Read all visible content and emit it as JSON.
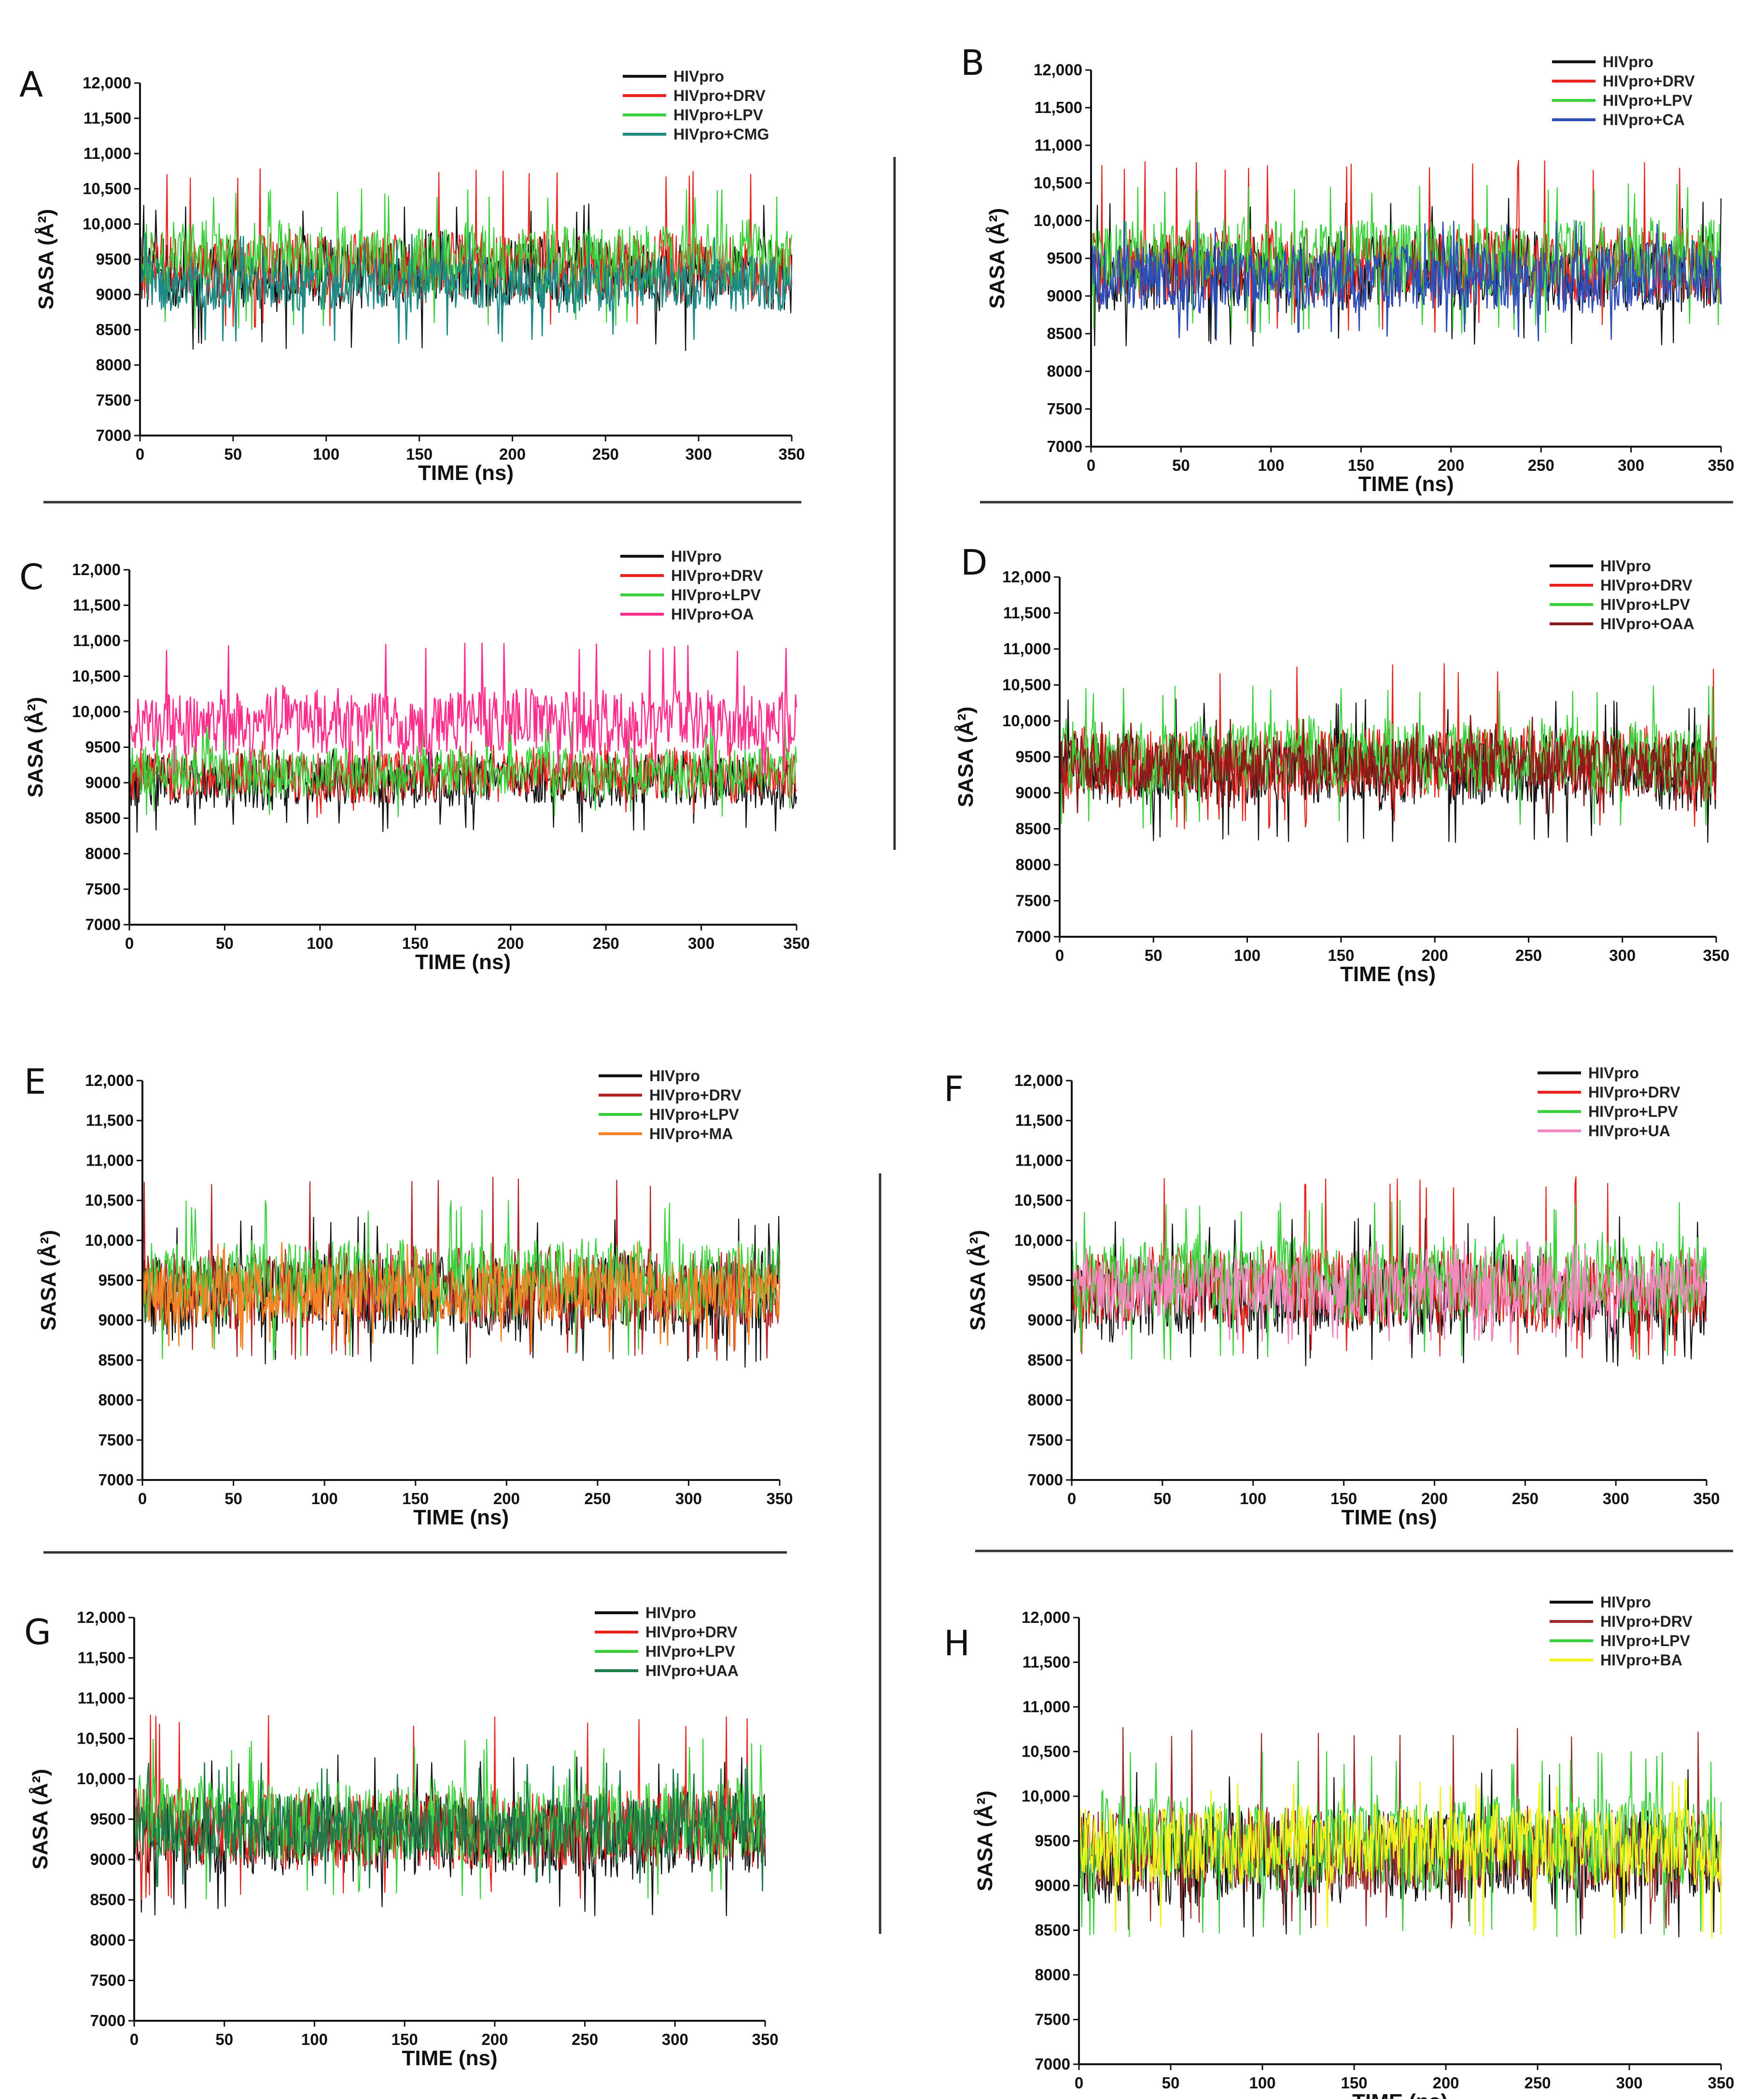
{
  "figure": {
    "panel_labels": [
      "A",
      "B",
      "C",
      "D",
      "E",
      "F",
      "G",
      "H"
    ]
  },
  "chart_data": [
    {
      "panel": "A",
      "type": "line",
      "xlabel": "TIME (ns)",
      "ylabel": "SASA (Å²)",
      "xlim": [
        0,
        350
      ],
      "ylim": [
        7000,
        12000
      ],
      "xticks": [
        "0",
        "50",
        "100",
        "150",
        "200",
        "250",
        "300",
        "350"
      ],
      "yticks": [
        "7000",
        "7500",
        "8000",
        "8500",
        "9000",
        "9500",
        "10,000",
        "10,500",
        "11,000",
        "11,500",
        "12,000"
      ],
      "series": [
        {
          "name": "HIVpro",
          "color": "#111111",
          "mean": 9300,
          "spread": 500,
          "min": 8200,
          "max": 10300
        },
        {
          "name": "HIVpro+DRV",
          "color": "#e8231b",
          "mean": 9400,
          "spread": 480,
          "min": 8500,
          "max": 10800
        },
        {
          "name": "HIVpro+LPV",
          "color": "#3cd13c",
          "mean": 9500,
          "spread": 500,
          "min": 8500,
          "max": 10500
        },
        {
          "name": "HIVpro+CMG",
          "color": "#1e8a85",
          "mean": 9150,
          "spread": 380,
          "min": 8300,
          "max": 9900
        }
      ]
    },
    {
      "panel": "B",
      "type": "line",
      "xlabel": "TIME (ns)",
      "ylabel": "SASA (Å²)",
      "xlim": [
        0,
        350
      ],
      "ylim": [
        7000,
        12000
      ],
      "xticks": [
        "0",
        "50",
        "100",
        "150",
        "200",
        "250",
        "300",
        "350"
      ],
      "yticks": [
        "7000",
        "7500",
        "8000",
        "8500",
        "9000",
        "9500",
        "10,000",
        "10,500",
        "11,000",
        "11,500",
        "12,000"
      ],
      "series": [
        {
          "name": "HIVpro",
          "color": "#111111",
          "mean": 9300,
          "spread": 500,
          "min": 8300,
          "max": 10300
        },
        {
          "name": "HIVpro+DRV",
          "color": "#e8231b",
          "mean": 9400,
          "spread": 480,
          "min": 8500,
          "max": 10800
        },
        {
          "name": "HIVpro+LPV",
          "color": "#3cd13c",
          "mean": 9500,
          "spread": 500,
          "min": 8500,
          "max": 10500
        },
        {
          "name": "HIVpro+CA",
          "color": "#2f4fb8",
          "mean": 9250,
          "spread": 430,
          "min": 8400,
          "max": 10000
        }
      ]
    },
    {
      "panel": "C",
      "type": "line",
      "xlabel": "TIME (ns)",
      "ylabel": "SASA (Å²)",
      "xlim": [
        0,
        350
      ],
      "ylim": [
        7000,
        12000
      ],
      "xticks": [
        "0",
        "50",
        "100",
        "150",
        "200",
        "250",
        "300",
        "350"
      ],
      "yticks": [
        "7000",
        "7500",
        "8000",
        "8500",
        "9000",
        "9500",
        "10,000",
        "10,500",
        "11,000",
        "11,500",
        "12,000"
      ],
      "series": [
        {
          "name": "HIVpro",
          "color": "#111111",
          "mean": 9000,
          "spread": 350,
          "min": 8300,
          "max": 9500
        },
        {
          "name": "HIVpro+DRV",
          "color": "#e8231b",
          "mean": 9100,
          "spread": 350,
          "min": 8500,
          "max": 9600
        },
        {
          "name": "HIVpro+LPV",
          "color": "#3cd13c",
          "mean": 9150,
          "spread": 350,
          "min": 8500,
          "max": 9900
        },
        {
          "name": "HIVpro+OA",
          "color": "#ff2e8c",
          "mean": 9850,
          "spread": 450,
          "min": 9100,
          "max": 11000
        }
      ]
    },
    {
      "panel": "D",
      "type": "line",
      "xlabel": "TIME (ns)",
      "ylabel": "SASA (Å²)",
      "xlim": [
        0,
        350
      ],
      "ylim": [
        7000,
        12000
      ],
      "xticks": [
        "0",
        "50",
        "100",
        "150",
        "200",
        "250",
        "300",
        "350"
      ],
      "yticks": [
        "7000",
        "7500",
        "8000",
        "8500",
        "9000",
        "9500",
        "10,000",
        "10,500",
        "11,000",
        "11,500",
        "12,000"
      ],
      "series": [
        {
          "name": "HIVpro",
          "color": "#111111",
          "mean": 9300,
          "spread": 500,
          "min": 8300,
          "max": 10300
        },
        {
          "name": "HIVpro+DRV",
          "color": "#e8231b",
          "mean": 9400,
          "spread": 480,
          "min": 8500,
          "max": 10800
        },
        {
          "name": "HIVpro+LPV",
          "color": "#3cd13c",
          "mean": 9500,
          "spread": 500,
          "min": 8500,
          "max": 10500
        },
        {
          "name": "HIVpro+OAA",
          "color": "#8b1a1a",
          "mean": 9400,
          "spread": 380,
          "min": 8700,
          "max": 10100
        }
      ]
    },
    {
      "panel": "E",
      "type": "line",
      "xlabel": "TIME (ns)",
      "ylabel": "SASA (Å²)",
      "xlim": [
        0,
        350
      ],
      "ylim": [
        7000,
        12000
      ],
      "xticks": [
        "0",
        "50",
        "100",
        "150",
        "200",
        "250",
        "300",
        "350"
      ],
      "yticks": [
        "7000",
        "7500",
        "8000",
        "8500",
        "9000",
        "9500",
        "10,000",
        "10,500",
        "11,000",
        "11,500",
        "12,000"
      ],
      "series": [
        {
          "name": "HIVpro",
          "color": "#111111",
          "mean": 9300,
          "spread": 500,
          "min": 8400,
          "max": 10300
        },
        {
          "name": "HIVpro+DRV",
          "color": "#b22222",
          "mean": 9400,
          "spread": 480,
          "min": 8500,
          "max": 10800
        },
        {
          "name": "HIVpro+LPV",
          "color": "#3cd13c",
          "mean": 9500,
          "spread": 500,
          "min": 8500,
          "max": 10500
        },
        {
          "name": "HIVpro+MA",
          "color": "#f58426",
          "mean": 9350,
          "spread": 380,
          "min": 8600,
          "max": 10000
        }
      ]
    },
    {
      "panel": "F",
      "type": "line",
      "xlabel": "TIME (ns)",
      "ylabel": "SASA (Å²)",
      "xlim": [
        0,
        350
      ],
      "ylim": [
        7000,
        12000
      ],
      "xticks": [
        "0",
        "50",
        "100",
        "150",
        "200",
        "250",
        "300",
        "350"
      ],
      "yticks": [
        "7000",
        "7500",
        "8000",
        "8500",
        "9000",
        "9500",
        "10,000",
        "10,500",
        "11,000",
        "11,500",
        "12,000"
      ],
      "series": [
        {
          "name": "HIVpro",
          "color": "#111111",
          "mean": 9300,
          "spread": 500,
          "min": 8400,
          "max": 10300
        },
        {
          "name": "HIVpro+DRV",
          "color": "#e8231b",
          "mean": 9400,
          "spread": 480,
          "min": 8500,
          "max": 10800
        },
        {
          "name": "HIVpro+LPV",
          "color": "#3cd13c",
          "mean": 9500,
          "spread": 500,
          "min": 8500,
          "max": 10500
        },
        {
          "name": "HIVpro+UA",
          "color": "#f28ac0",
          "mean": 9400,
          "spread": 380,
          "min": 8700,
          "max": 10000
        }
      ]
    },
    {
      "panel": "G",
      "type": "line",
      "xlabel": "TIME (ns)",
      "ylabel": "SASA (Å²)",
      "xlim": [
        0,
        350
      ],
      "ylim": [
        7000,
        12000
      ],
      "xticks": [
        "0",
        "50",
        "100",
        "150",
        "200",
        "250",
        "300",
        "350"
      ],
      "yticks": [
        "7000",
        "7500",
        "8000",
        "8500",
        "9000",
        "9500",
        "10,000",
        "10,500",
        "11,000",
        "11,500",
        "12,000"
      ],
      "series": [
        {
          "name": "HIVpro",
          "color": "#111111",
          "mean": 9300,
          "spread": 500,
          "min": 8300,
          "max": 10300
        },
        {
          "name": "HIVpro+DRV",
          "color": "#e8231b",
          "mean": 9400,
          "spread": 480,
          "min": 8500,
          "max": 10800
        },
        {
          "name": "HIVpro+LPV",
          "color": "#3cd13c",
          "mean": 9500,
          "spread": 500,
          "min": 8500,
          "max": 10500
        },
        {
          "name": "HIVpro+UAA",
          "color": "#1f7a4a",
          "mean": 9400,
          "spread": 400,
          "min": 8600,
          "max": 10200
        }
      ]
    },
    {
      "panel": "H",
      "type": "line",
      "xlabel": "TIME (ns)",
      "ylabel": "SASA (Å²)",
      "xlim": [
        0,
        350
      ],
      "ylim": [
        7000,
        12000
      ],
      "xticks": [
        "0",
        "50",
        "100",
        "150",
        "200",
        "250",
        "300",
        "350"
      ],
      "yticks": [
        "7000",
        "7500",
        "8000",
        "8500",
        "9000",
        "9500",
        "10,000",
        "10,500",
        "11,000",
        "11,500",
        "12,000"
      ],
      "series": [
        {
          "name": "HIVpro",
          "color": "#111111",
          "mean": 9300,
          "spread": 500,
          "min": 8400,
          "max": 10300
        },
        {
          "name": "HIVpro+DRV",
          "color": "#9c2a2a",
          "mean": 9400,
          "spread": 480,
          "min": 8500,
          "max": 10800
        },
        {
          "name": "HIVpro+LPV",
          "color": "#3cd13c",
          "mean": 9500,
          "spread": 500,
          "min": 8400,
          "max": 10500
        },
        {
          "name": "HIVpro+BA",
          "color": "#f2f21a",
          "mean": 9450,
          "spread": 420,
          "min": 8400,
          "max": 10200
        }
      ]
    }
  ]
}
